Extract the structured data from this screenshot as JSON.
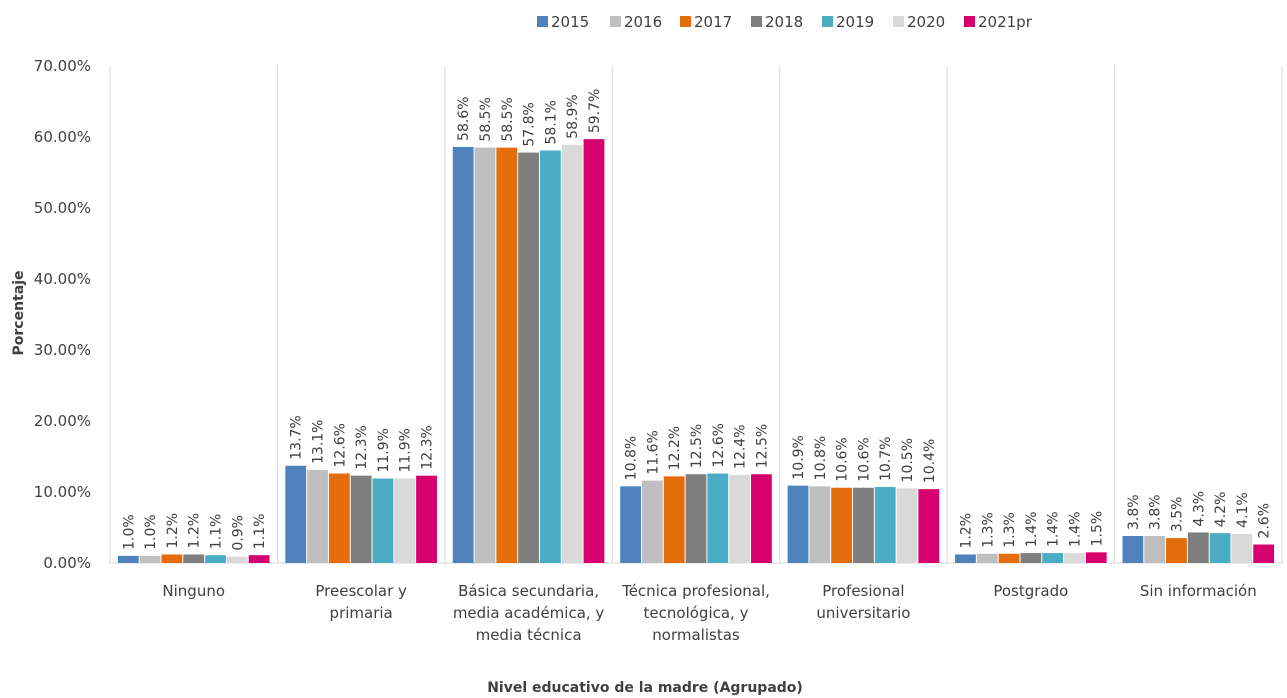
{
  "chart_data": {
    "type": "bar",
    "title": "",
    "xlabel": "Nivel educativo de la madre (Agrupado)",
    "ylabel": "Porcentaje",
    "ylim": [
      0,
      70
    ],
    "ytick_values": [
      0,
      10,
      20,
      30,
      40,
      50,
      60,
      70
    ],
    "ytick_labels": [
      "0.00%",
      "10.00%",
      "20.00%",
      "30.00%",
      "40.00%",
      "50.00%",
      "60.00%",
      "70.00%"
    ],
    "categories": [
      [
        "Ninguno"
      ],
      [
        "Preescolar y",
        "primaria"
      ],
      [
        "Básica secundaria,",
        "media académica, y",
        "media técnica"
      ],
      [
        "Técnica profesional,",
        "tecnológica, y",
        "normalistas"
      ],
      [
        "Profesional",
        "universitario"
      ],
      [
        "Postgrado"
      ],
      [
        "Sin información"
      ]
    ],
    "legend_position": "top-center",
    "grid": "vertical separators between categories",
    "series": [
      {
        "name": "2015",
        "color": "#4F81BD",
        "values": [
          1.0,
          13.7,
          58.6,
          10.8,
          10.9,
          1.2,
          3.8
        ],
        "labels": [
          "1.0%",
          "13.7%",
          "58.6%",
          "10.8%",
          "10.9%",
          "1.2%",
          "3.8%"
        ]
      },
      {
        "name": "2016",
        "color": "#BFBFBF",
        "values": [
          1.0,
          13.1,
          58.5,
          11.6,
          10.8,
          1.3,
          3.8
        ],
        "labels": [
          "1.0%",
          "13.1%",
          "58.5%",
          "11.6%",
          "10.8%",
          "1.3%",
          "3.8%"
        ]
      },
      {
        "name": "2017",
        "color": "#E46C0A",
        "values": [
          1.2,
          12.6,
          58.5,
          12.2,
          10.6,
          1.3,
          3.5
        ],
        "labels": [
          "1.2%",
          "12.6%",
          "58.5%",
          "12.2%",
          "10.6%",
          "1.3%",
          "3.5%"
        ]
      },
      {
        "name": "2018",
        "color": "#7F7F7F",
        "values": [
          1.2,
          12.3,
          57.8,
          12.5,
          10.6,
          1.4,
          4.3
        ],
        "labels": [
          "1.2%",
          "12.3%",
          "57.8%",
          "12.5%",
          "10.6%",
          "1.4%",
          "4.3%"
        ]
      },
      {
        "name": "2019",
        "color": "#4BACC6",
        "values": [
          1.1,
          11.9,
          58.1,
          12.6,
          10.7,
          1.4,
          4.2
        ],
        "labels": [
          "1.1%",
          "11.9%",
          "58.1%",
          "12.6%",
          "10.7%",
          "1.4%",
          "4.2%"
        ]
      },
      {
        "name": "2020",
        "color": "#D9D9D9",
        "values": [
          0.9,
          11.9,
          58.9,
          12.4,
          10.5,
          1.4,
          4.1
        ],
        "labels": [
          "0.9%",
          "11.9%",
          "58.9%",
          "12.4%",
          "10.5%",
          "1.4%",
          "4.1%"
        ]
      },
      {
        "name": "2021pr",
        "color": "#D6006E",
        "values": [
          1.1,
          12.3,
          59.7,
          12.5,
          10.4,
          1.5,
          2.6
        ],
        "labels": [
          "1.1%",
          "12.3%",
          "59.7%",
          "12.5%",
          "10.4%",
          "1.5%",
          "2.6%"
        ]
      }
    ]
  }
}
